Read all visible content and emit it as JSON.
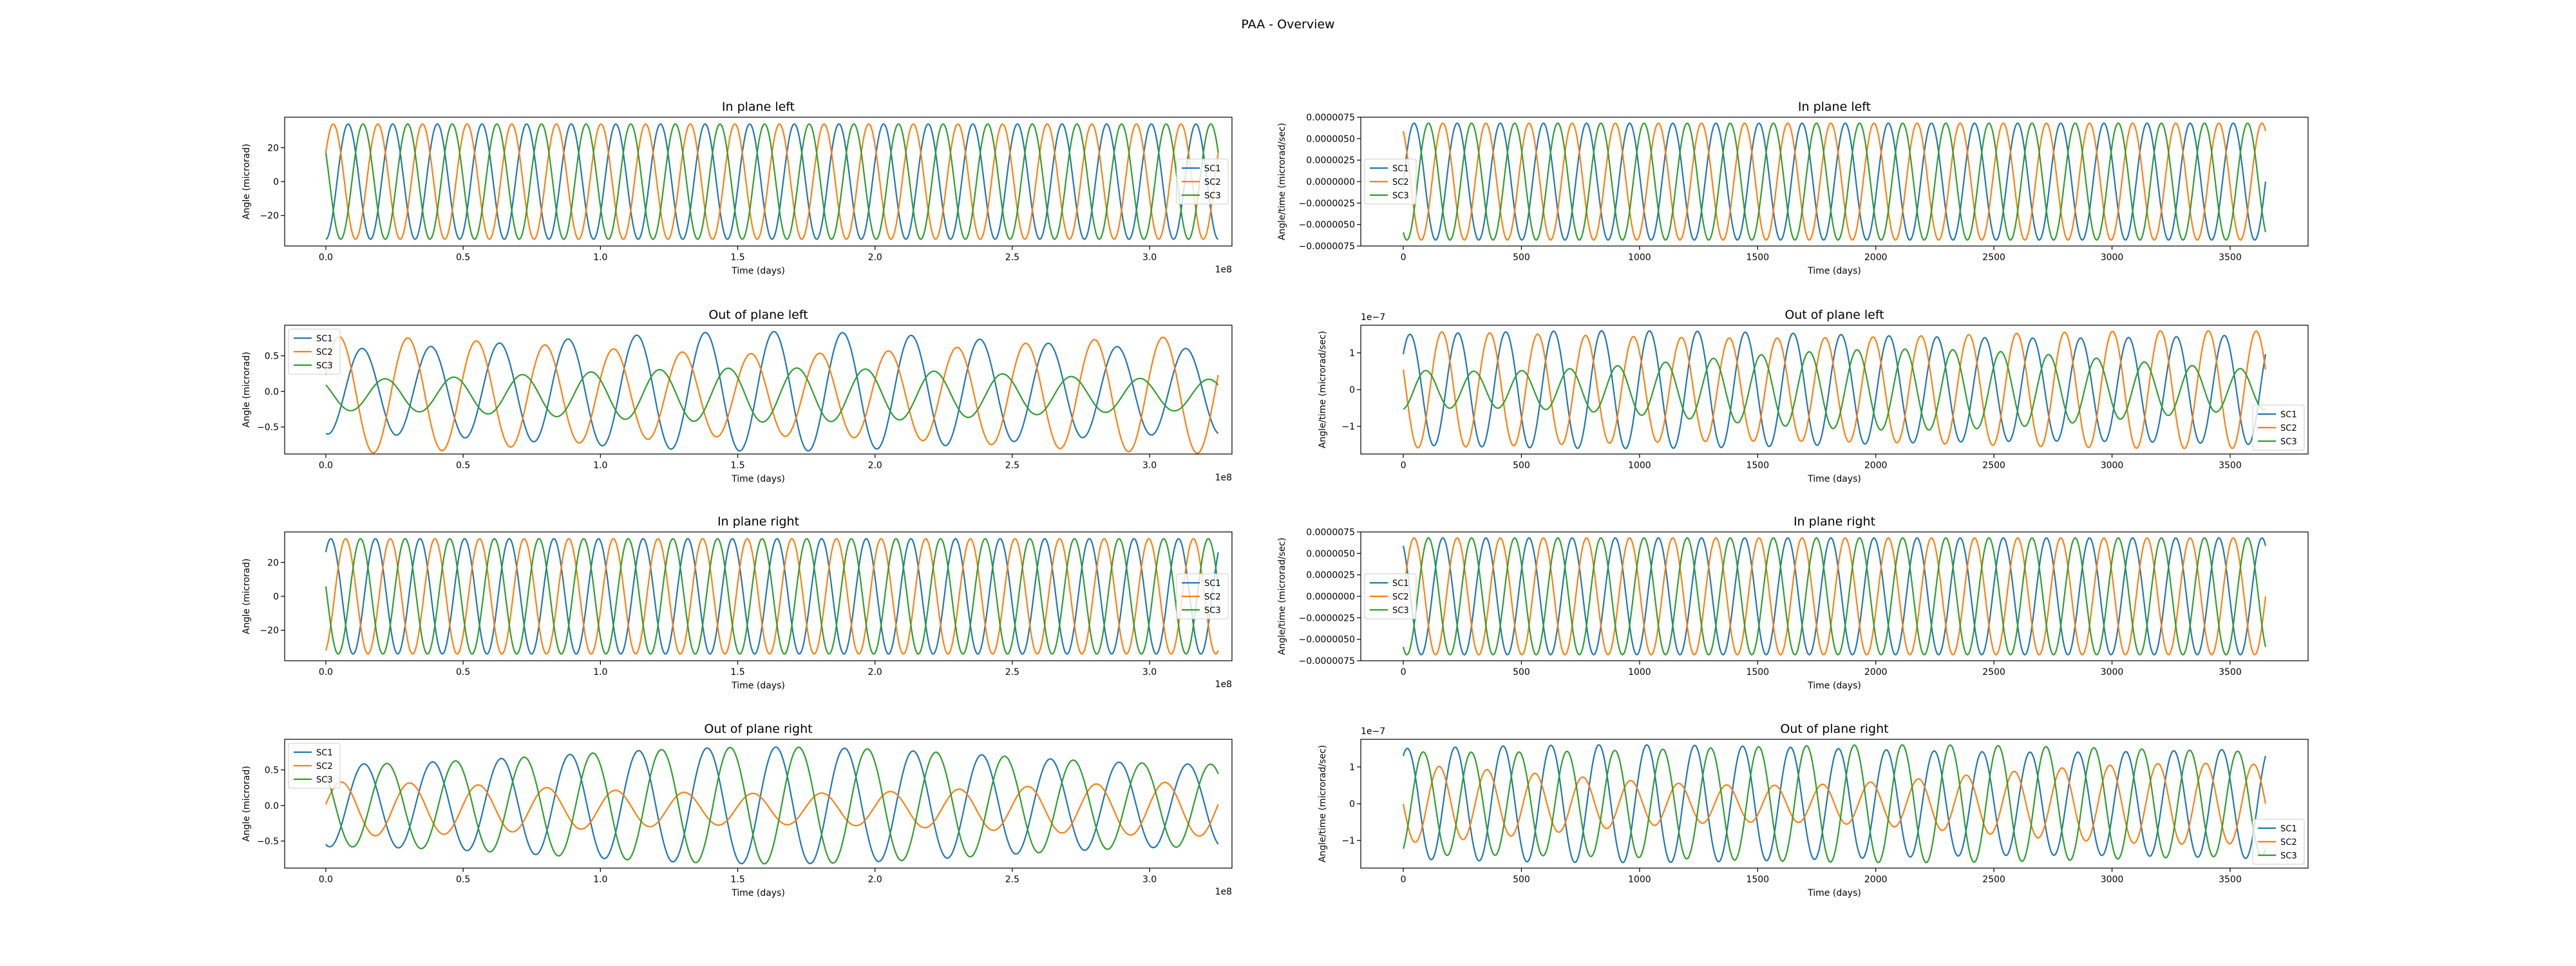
{
  "figure_title": "PAA - Overview",
  "colors": {
    "SC1": "#1f77b4",
    "SC2": "#ff7f0e",
    "SC3": "#2ca02c"
  },
  "chart_data": [
    {
      "type": "line",
      "title": "In plane left",
      "xlabel": "Time (days)",
      "ylabel": "Angle (microrad)",
      "x_offset_text": "1e8",
      "xlim": [
        -0.15,
        3.3
      ],
      "ylim": [
        -38,
        38
      ],
      "xticks": [
        0.0,
        0.5,
        1.0,
        1.5,
        2.0,
        2.5,
        3.0
      ],
      "xtick_labels": [
        "0.0",
        "0.5",
        "1.0",
        "1.5",
        "2.0",
        "2.5",
        "3.0"
      ],
      "yticks": [
        -20,
        0,
        20
      ],
      "ytick_labels": [
        "−20",
        "0",
        "20"
      ],
      "legend_position": "right",
      "grid": false,
      "series": [
        {
          "name": "SC1",
          "x_range": [
            0,
            3.25
          ],
          "waveform": "sinusoid",
          "amplitude": 34,
          "cycles": 20,
          "phase_deg": -90
        },
        {
          "name": "SC2",
          "x_range": [
            0,
            3.25
          ],
          "waveform": "sinusoid",
          "amplitude": 34,
          "cycles": 20,
          "phase_deg": 30
        },
        {
          "name": "SC3",
          "x_range": [
            0,
            3.25
          ],
          "waveform": "sinusoid",
          "amplitude": 34,
          "cycles": 20,
          "phase_deg": 150
        }
      ]
    },
    {
      "type": "line",
      "title": "In plane left",
      "xlabel": "Time (days)",
      "ylabel": "Angle/time (microrad/sec)",
      "xlim": [
        -180,
        3830
      ],
      "ylim": [
        -7.5e-06,
        7.5e-06
      ],
      "xticks": [
        0,
        500,
        1000,
        1500,
        2000,
        2500,
        3000,
        3500
      ],
      "xtick_labels": [
        "0",
        "500",
        "1000",
        "1500",
        "2000",
        "2500",
        "3000",
        "3500"
      ],
      "yticks": [
        -7.5e-06,
        -5e-06,
        -2.5e-06,
        0,
        2.5e-06,
        5e-06,
        7.5e-06
      ],
      "ytick_labels": [
        "−0.0000075",
        "−0.0000050",
        "−0.0000025",
        "0.0000000",
        "0.0000025",
        "0.0000050",
        "0.0000075"
      ],
      "legend_position": "left",
      "grid": false,
      "series": [
        {
          "name": "SC1",
          "x_range": [
            0,
            3650
          ],
          "waveform": "sinusoid",
          "amplitude": 6.8e-06,
          "cycles": 20,
          "phase_deg": 0
        },
        {
          "name": "SC2",
          "x_range": [
            0,
            3650
          ],
          "waveform": "sinusoid",
          "amplitude": 6.8e-06,
          "cycles": 20,
          "phase_deg": 120
        },
        {
          "name": "SC3",
          "x_range": [
            0,
            3650
          ],
          "waveform": "sinusoid",
          "amplitude": 6.8e-06,
          "cycles": 20,
          "phase_deg": 240
        }
      ]
    },
    {
      "type": "line",
      "title": "Out of plane left",
      "xlabel": "Time (days)",
      "ylabel": "Angle (microrad)",
      "x_offset_text": "1e8",
      "xlim": [
        -0.15,
        3.3
      ],
      "ylim": [
        -0.88,
        0.93
      ],
      "xticks": [
        0.0,
        0.5,
        1.0,
        1.5,
        2.0,
        2.5,
        3.0
      ],
      "xtick_labels": [
        "0.0",
        "0.5",
        "1.0",
        "1.5",
        "2.0",
        "2.5",
        "3.0"
      ],
      "yticks": [
        -0.5,
        0.0,
        0.5
      ],
      "ytick_labels": [
        "−0.5",
        "0.0",
        "0.5"
      ],
      "legend_position": "top-left",
      "grid": false,
      "series": [
        {
          "name": "SC1",
          "x_range": [
            0,
            3.25
          ],
          "waveform": "modulated",
          "amplitude": 0.72,
          "cycles": 13,
          "phase_deg": -100,
          "offset": 0,
          "mod_amp": 0.12,
          "mod_cycles": 1,
          "mod_phase_deg": -90
        },
        {
          "name": "SC2",
          "x_range": [
            0,
            3.25
          ],
          "waveform": "modulated",
          "amplitude": 0.7,
          "cycles": 13,
          "phase_deg": 20,
          "offset": -0.05,
          "mod_amp": 0.12,
          "mod_cycles": 1,
          "mod_phase_deg": 90
        },
        {
          "name": "SC3",
          "x_range": [
            0,
            3.25
          ],
          "waveform": "modulated",
          "amplitude": 0.3,
          "cycles": 13,
          "phase_deg": 140,
          "offset": -0.05,
          "mod_amp": 0.08,
          "mod_cycles": 1,
          "mod_phase_deg": -90
        }
      ]
    },
    {
      "type": "line",
      "title": "Out of plane left",
      "xlabel": "Time (days)",
      "ylabel": "Angle/time (microrad/sec)",
      "y_offset_text": "1e−7",
      "xlim": [
        -180,
        3830
      ],
      "ylim": [
        -1.75,
        1.75
      ],
      "xticks": [
        0,
        500,
        1000,
        1500,
        2000,
        2500,
        3000,
        3500
      ],
      "xtick_labels": [
        "0",
        "500",
        "1000",
        "1500",
        "2000",
        "2500",
        "3000",
        "3500"
      ],
      "yticks": [
        -1,
        0,
        1
      ],
      "ytick_labels": [
        "−1",
        "0",
        "1"
      ],
      "legend_position": "bottom-right",
      "grid": false,
      "series": [
        {
          "name": "SC1",
          "x_range": [
            0,
            3650
          ],
          "waveform": "modulated",
          "amplitude": 1.5,
          "cycles": 18,
          "phase_deg": 40,
          "offset": 0,
          "mod_amp": 0.1,
          "mod_cycles": 1,
          "mod_phase_deg": 0
        },
        {
          "name": "SC2",
          "x_range": [
            0,
            3650
          ],
          "waveform": "modulated",
          "amplitude": 1.5,
          "cycles": 18,
          "phase_deg": 160,
          "offset": 0,
          "mod_amp": 0.1,
          "mod_cycles": 1,
          "mod_phase_deg": 120
        },
        {
          "name": "SC3",
          "x_range": [
            0,
            3650
          ],
          "waveform": "modulated",
          "amplitude": 0.8,
          "cycles": 18,
          "phase_deg": 280,
          "offset": 0,
          "mod_amp": 0.3,
          "mod_cycles": 1,
          "mod_phase_deg": 240
        }
      ]
    },
    {
      "type": "line",
      "title": "In plane right",
      "xlabel": "Time (days)",
      "ylabel": "Angle (microrad)",
      "x_offset_text": "1e8",
      "xlim": [
        -0.15,
        3.3
      ],
      "ylim": [
        -38,
        38
      ],
      "xticks": [
        0.0,
        0.5,
        1.0,
        1.5,
        2.0,
        2.5,
        3.0
      ],
      "xtick_labels": [
        "0.0",
        "0.5",
        "1.0",
        "1.5",
        "2.0",
        "2.5",
        "3.0"
      ],
      "yticks": [
        -20,
        0,
        20
      ],
      "ytick_labels": [
        "−20",
        "0",
        "20"
      ],
      "legend_position": "right",
      "grid": false,
      "series": [
        {
          "name": "SC1",
          "x_range": [
            0,
            3.25
          ],
          "waveform": "sinusoid",
          "amplitude": 34,
          "cycles": 20,
          "phase_deg": 50
        },
        {
          "name": "SC2",
          "x_range": [
            0,
            3.25
          ],
          "waveform": "sinusoid",
          "amplitude": 34,
          "cycles": 20,
          "phase_deg": -70
        },
        {
          "name": "SC3",
          "x_range": [
            0,
            3.25
          ],
          "waveform": "sinusoid",
          "amplitude": 34,
          "cycles": 20,
          "phase_deg": 170
        }
      ]
    },
    {
      "type": "line",
      "title": "In plane right",
      "xlabel": "Time (days)",
      "ylabel": "Angle/time (microrad/sec)",
      "xlim": [
        -180,
        3830
      ],
      "ylim": [
        -7.5e-06,
        7.5e-06
      ],
      "xticks": [
        0,
        500,
        1000,
        1500,
        2000,
        2500,
        3000,
        3500
      ],
      "xtick_labels": [
        "0",
        "500",
        "1000",
        "1500",
        "2000",
        "2500",
        "3000",
        "3500"
      ],
      "yticks": [
        -7.5e-06,
        -5e-06,
        -2.5e-06,
        0,
        2.5e-06,
        5e-06,
        7.5e-06
      ],
      "ytick_labels": [
        "−0.0000075",
        "−0.0000050",
        "−0.0000025",
        "0.0000000",
        "0.0000025",
        "0.0000050",
        "0.0000075"
      ],
      "legend_position": "left",
      "grid": false,
      "series": [
        {
          "name": "SC1",
          "x_range": [
            0,
            3650
          ],
          "waveform": "sinusoid",
          "amplitude": 6.8e-06,
          "cycles": 20,
          "phase_deg": 120
        },
        {
          "name": "SC2",
          "x_range": [
            0,
            3650
          ],
          "waveform": "sinusoid",
          "amplitude": 6.8e-06,
          "cycles": 20,
          "phase_deg": 0
        },
        {
          "name": "SC3",
          "x_range": [
            0,
            3650
          ],
          "waveform": "sinusoid",
          "amplitude": 6.8e-06,
          "cycles": 20,
          "phase_deg": 240
        }
      ]
    },
    {
      "type": "line",
      "title": "Out of plane right",
      "xlabel": "Time (days)",
      "ylabel": "Angle (microrad)",
      "x_offset_text": "1e8",
      "xlim": [
        -0.15,
        3.3
      ],
      "ylim": [
        -0.88,
        0.93
      ],
      "xticks": [
        0.0,
        0.5,
        1.0,
        1.5,
        2.0,
        2.5,
        3.0
      ],
      "xtick_labels": [
        "0.0",
        "0.5",
        "1.0",
        "1.5",
        "2.0",
        "2.5",
        "3.0"
      ],
      "yticks": [
        -0.5,
        0.0,
        0.5
      ],
      "ytick_labels": [
        "−0.5",
        "0.0",
        "0.5"
      ],
      "legend_position": "top-left",
      "grid": false,
      "series": [
        {
          "name": "SC1",
          "x_range": [
            0,
            3.25
          ],
          "waveform": "modulated",
          "amplitude": 0.7,
          "cycles": 13,
          "phase_deg": -110,
          "offset": 0,
          "mod_amp": 0.12,
          "mod_cycles": 1,
          "mod_phase_deg": -90
        },
        {
          "name": "SC2",
          "x_range": [
            0,
            3.25
          ],
          "waveform": "modulated",
          "amplitude": 0.3,
          "cycles": 13,
          "phase_deg": 10,
          "offset": -0.05,
          "mod_amp": 0.08,
          "mod_cycles": 1,
          "mod_phase_deg": 90
        },
        {
          "name": "SC3",
          "x_range": [
            0,
            3.25
          ],
          "waveform": "modulated",
          "amplitude": 0.7,
          "cycles": 13,
          "phase_deg": 130,
          "offset": 0,
          "mod_amp": 0.12,
          "mod_cycles": 1,
          "mod_phase_deg": -90
        }
      ]
    },
    {
      "type": "line",
      "title": "Out of plane right",
      "xlabel": "Time (days)",
      "ylabel": "Angle/time (microrad/sec)",
      "y_offset_text": "1e−7",
      "xlim": [
        -180,
        3830
      ],
      "ylim": [
        -1.75,
        1.75
      ],
      "xticks": [
        0,
        500,
        1000,
        1500,
        2000,
        2500,
        3000,
        3500
      ],
      "xtick_labels": [
        "0",
        "500",
        "1000",
        "1500",
        "2000",
        "2500",
        "3000",
        "3500"
      ],
      "yticks": [
        -1,
        0,
        1
      ],
      "ytick_labels": [
        "−1",
        "0",
        "1"
      ],
      "legend_position": "bottom-right",
      "grid": false,
      "series": [
        {
          "name": "SC1",
          "x_range": [
            0,
            3650
          ],
          "waveform": "modulated",
          "amplitude": 1.5,
          "cycles": 18,
          "phase_deg": 60,
          "offset": 0,
          "mod_amp": 0.1,
          "mod_cycles": 1,
          "mod_phase_deg": 0
        },
        {
          "name": "SC2",
          "x_range": [
            0,
            3650
          ],
          "waveform": "modulated",
          "amplitude": 0.8,
          "cycles": 18,
          "phase_deg": 180,
          "offset": 0,
          "mod_amp": 0.3,
          "mod_cycles": 1,
          "mod_phase_deg": 120
        },
        {
          "name": "SC3",
          "x_range": [
            0,
            3650
          ],
          "waveform": "modulated",
          "amplitude": 1.5,
          "cycles": 18,
          "phase_deg": 300,
          "offset": 0,
          "mod_amp": 0.1,
          "mod_cycles": 1,
          "mod_phase_deg": 240
        }
      ]
    }
  ]
}
